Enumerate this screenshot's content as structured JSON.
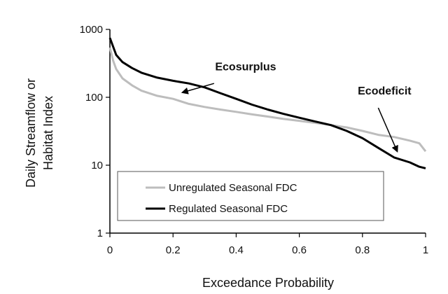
{
  "chart_data": {
    "type": "line",
    "xlabel": "Exceedance Probability",
    "ylabel_lines": [
      "Daily Streamflow or",
      "Habitat Index"
    ],
    "xlim": [
      0,
      1
    ],
    "ylim": [
      1,
      1000
    ],
    "yscale": "log",
    "x_ticks": [
      0,
      0.2,
      0.4,
      0.6,
      0.8,
      1
    ],
    "x_tick_labels": [
      "0",
      "0.2",
      "0.4",
      "0.6",
      "0.8",
      "1"
    ],
    "y_ticks": [
      1,
      10,
      100,
      1000
    ],
    "y_tick_labels": [
      "1",
      "10",
      "100",
      "1000"
    ],
    "grid": false,
    "legend_position": "lower-left",
    "series": [
      {
        "name": "Unregulated Seasonal FDC",
        "color": "#bdbdbd",
        "points": [
          [
            0,
            540
          ],
          [
            0.01,
            350
          ],
          [
            0.02,
            260
          ],
          [
            0.04,
            190
          ],
          [
            0.07,
            150
          ],
          [
            0.1,
            125
          ],
          [
            0.15,
            105
          ],
          [
            0.2,
            95
          ],
          [
            0.25,
            80
          ],
          [
            0.3,
            72
          ],
          [
            0.35,
            66
          ],
          [
            0.4,
            61
          ],
          [
            0.45,
            56
          ],
          [
            0.5,
            52
          ],
          [
            0.55,
            48
          ],
          [
            0.6,
            45
          ],
          [
            0.65,
            42
          ],
          [
            0.7,
            39
          ],
          [
            0.75,
            36
          ],
          [
            0.8,
            32
          ],
          [
            0.85,
            28
          ],
          [
            0.9,
            26
          ],
          [
            0.95,
            23
          ],
          [
            0.98,
            21
          ],
          [
            1.0,
            16
          ]
        ]
      },
      {
        "name": "Regulated Seasonal FDC",
        "color": "#000000",
        "points": [
          [
            0,
            750
          ],
          [
            0.01,
            560
          ],
          [
            0.02,
            420
          ],
          [
            0.04,
            330
          ],
          [
            0.07,
            270
          ],
          [
            0.1,
            230
          ],
          [
            0.15,
            195
          ],
          [
            0.2,
            175
          ],
          [
            0.25,
            160
          ],
          [
            0.3,
            140
          ],
          [
            0.35,
            115
          ],
          [
            0.4,
            95
          ],
          [
            0.45,
            78
          ],
          [
            0.5,
            66
          ],
          [
            0.55,
            57
          ],
          [
            0.6,
            50
          ],
          [
            0.65,
            44
          ],
          [
            0.7,
            39
          ],
          [
            0.75,
            32
          ],
          [
            0.8,
            25
          ],
          [
            0.85,
            18
          ],
          [
            0.9,
            13
          ],
          [
            0.95,
            11
          ],
          [
            0.98,
            9.5
          ],
          [
            1.0,
            9
          ]
        ]
      }
    ],
    "annotations": [
      {
        "text": "Ecosurplus",
        "label_at": [
          0.43,
          250
        ],
        "arrow_from": [
          0.33,
          160
        ],
        "arrow_to": [
          0.23,
          118
        ]
      },
      {
        "text": "Ecodeficit",
        "label_at": [
          0.87,
          110
        ],
        "arrow_from": [
          0.85,
          70
        ],
        "arrow_to": [
          0.91,
          16
        ]
      }
    ]
  }
}
